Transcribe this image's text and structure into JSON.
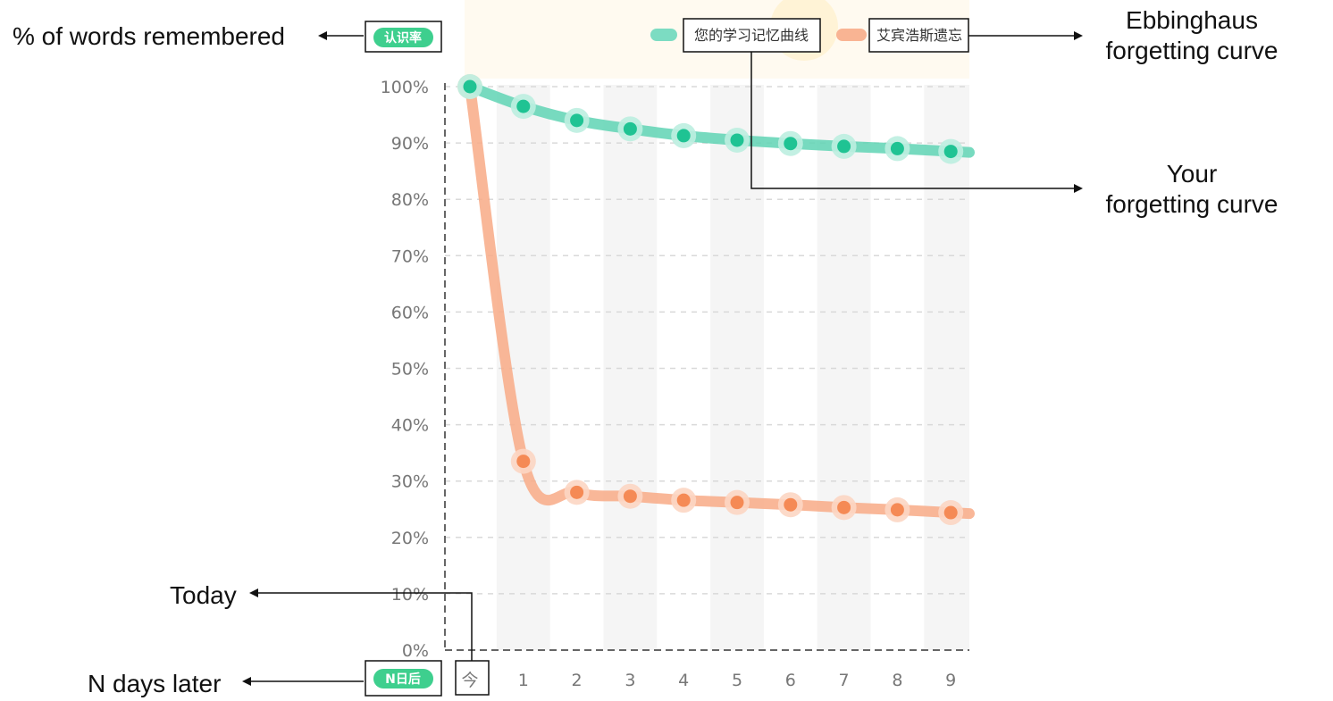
{
  "annotations": {
    "y_axis_meaning": "% of words remembered",
    "ebbinghaus": [
      "Ebbinghaus",
      "forgetting curve"
    ],
    "your_curve": [
      "Your",
      "forgetting curve"
    ],
    "today": "Today",
    "x_axis_meaning": "N days later"
  },
  "badges": {
    "y_axis": "认识率",
    "x_axis": "N日后"
  },
  "colors": {
    "your_curve": "#5fd3b4",
    "your_dot": "#1fc393",
    "ebbinghaus": "#f8aa86",
    "ebbinghaus_dot": "#f58a55",
    "badge": "#3ecf8e",
    "grid": "#d9d9d9",
    "band": "#f5f5f5",
    "axis": "#666666"
  },
  "chart_data": {
    "type": "line",
    "categories": [
      "今",
      "1",
      "2",
      "3",
      "4",
      "5",
      "6",
      "7",
      "8",
      "9"
    ],
    "series": [
      {
        "name": "您的学习记忆曲线",
        "values": [
          100,
          96.5,
          94,
          92.5,
          91.3,
          90.5,
          89.9,
          89.4,
          89.0,
          88.5
        ]
      },
      {
        "name": "艾宾浩斯遗忘",
        "values": [
          100,
          33.5,
          28,
          27.3,
          26.6,
          26.2,
          25.8,
          25.3,
          24.9,
          24.4
        ]
      }
    ],
    "yticks": [
      "0%",
      "10%",
      "20%",
      "30%",
      "40%",
      "50%",
      "60%",
      "70%",
      "80%",
      "90%",
      "100%"
    ],
    "ylim": [
      0,
      100
    ],
    "grid": true,
    "legend": "top-right"
  }
}
